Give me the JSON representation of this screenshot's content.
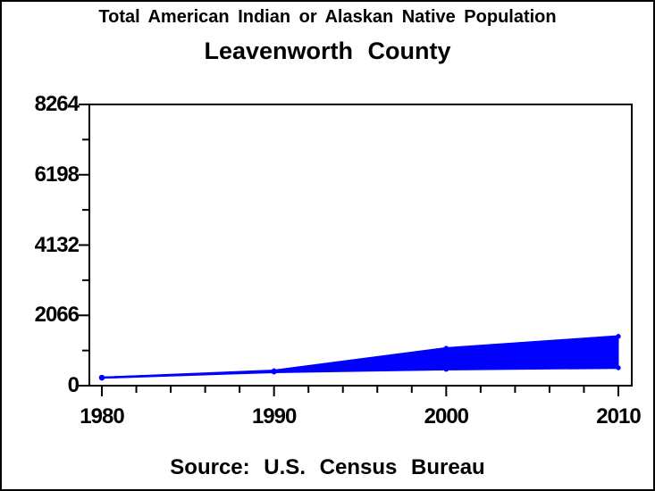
{
  "header": {
    "title": "Total American Indian or Alaskan Native Population",
    "subtitle": "Leavenworth County"
  },
  "footer": {
    "source": "Source: U.S. Census Bureau"
  },
  "colors": {
    "band": "#0000ff",
    "axis": "#000000",
    "background": "#ffffff",
    "text": "#000000",
    "border": "#000000"
  },
  "chart_data": {
    "type": "area",
    "subtype": "band-range",
    "title": "Total American Indian or Alaskan Native Population",
    "subtitle": "Leavenworth County",
    "source": "Source: U.S. Census Bureau",
    "xlabel": "",
    "ylabel": "",
    "x": [
      1980,
      1990,
      2000,
      2010
    ],
    "series": [
      {
        "name": "upper",
        "values": [
          235,
          440,
          1100,
          1450
        ]
      },
      {
        "name": "lower",
        "values": [
          235,
          400,
          480,
          525
        ]
      }
    ],
    "xlim": [
      1980,
      2010
    ],
    "ylim": [
      0,
      8264
    ],
    "xticks": [
      1980,
      1990,
      2000,
      2010
    ],
    "xtick_labels": [
      "1980",
      "1990",
      "2000",
      "2010"
    ],
    "xticks_minor_step_years": 2,
    "yticks": [
      0,
      2066,
      4132,
      6198,
      8264
    ],
    "ytick_labels": [
      "0",
      "2066",
      "4132",
      "6198",
      "8264"
    ],
    "yticks_minor": [
      1033,
      3099,
      5165,
      7231
    ],
    "grid": false,
    "legend": "none",
    "markers": true,
    "band_color": "#0000ff"
  }
}
